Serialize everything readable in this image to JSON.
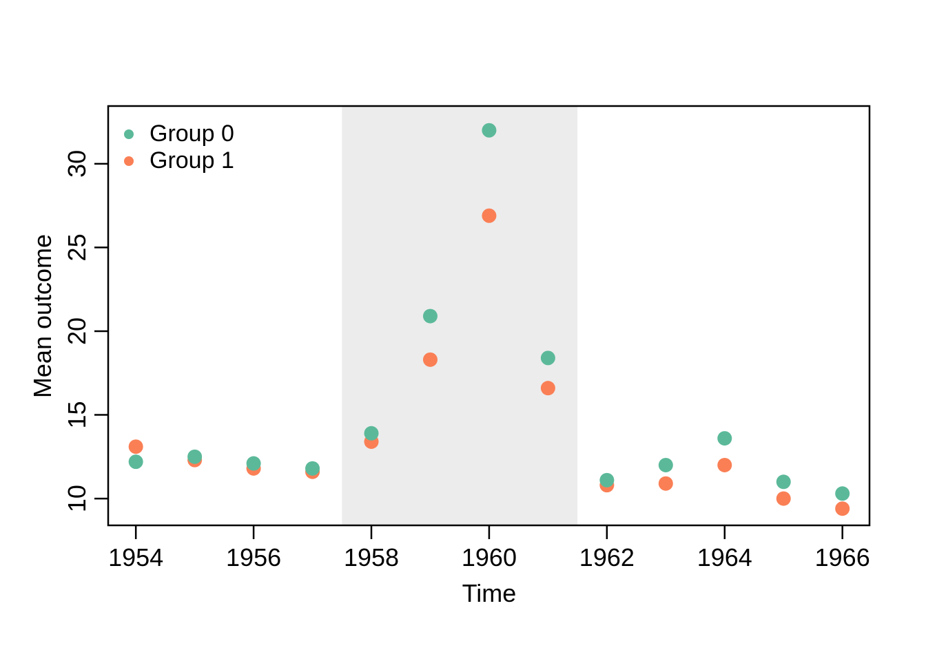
{
  "figure": {
    "background_color": "#ffffff",
    "title": ""
  },
  "chart_data": {
    "type": "scatter",
    "title": "",
    "xlabel": "Time",
    "ylabel": "Mean outcome",
    "x": [
      1954,
      1955,
      1956,
      1957,
      1958,
      1959,
      1960,
      1961,
      1962,
      1963,
      1964,
      1965,
      1966
    ],
    "series": [
      {
        "name": "Group 0",
        "color": "#5bb999",
        "values": [
          12.2,
          12.5,
          12.1,
          11.8,
          13.9,
          20.9,
          32.0,
          18.4,
          11.1,
          12.0,
          13.6,
          11.0,
          10.3
        ]
      },
      {
        "name": "Group 1",
        "color": "#fa7f55",
        "values": [
          13.1,
          12.3,
          11.8,
          11.6,
          13.4,
          18.3,
          26.9,
          16.6,
          10.8,
          10.9,
          12.0,
          10.0,
          9.4
        ]
      }
    ],
    "x_ticks": [
      1954,
      1956,
      1958,
      1960,
      1962,
      1964,
      1966
    ],
    "y_ticks": [
      10,
      15,
      20,
      25,
      30
    ],
    "xlim": [
      1953.53,
      1966.46
    ],
    "ylim": [
      8.4,
      33.45
    ],
    "shaded_region": {
      "x_start": 1957.5,
      "x_end": 1961.5,
      "color": "#ececec"
    },
    "grid": false,
    "legend_position": "top-left",
    "axis_color": "#000000"
  }
}
